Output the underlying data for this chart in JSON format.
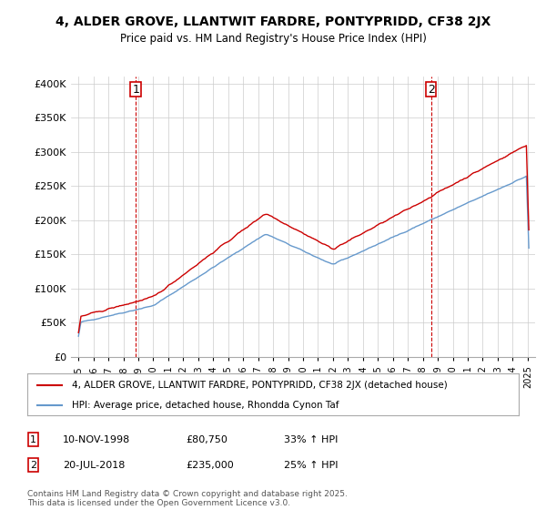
{
  "title": "4, ALDER GROVE, LLANTWIT FARDRE, PONTYPRIDD, CF38 2JX",
  "subtitle": "Price paid vs. HM Land Registry's House Price Index (HPI)",
  "legend_line1": "4, ALDER GROVE, LLANTWIT FARDRE, PONTYPRIDD, CF38 2JX (detached house)",
  "legend_line2": "HPI: Average price, detached house, Rhondda Cynon Taf",
  "footnote": "Contains HM Land Registry data © Crown copyright and database right 2025.\nThis data is licensed under the Open Government Licence v3.0.",
  "annotation1_date": "10-NOV-1998",
  "annotation1_price": "£80,750",
  "annotation1_hpi": "33% ↑ HPI",
  "annotation2_date": "20-JUL-2018",
  "annotation2_price": "£235,000",
  "annotation2_hpi": "25% ↑ HPI",
  "line1_color": "#cc0000",
  "line2_color": "#6699cc",
  "background_color": "#ffffff",
  "grid_color": "#cccccc",
  "ylim": [
    0,
    410000
  ],
  "yticks": [
    0,
    50000,
    100000,
    150000,
    200000,
    250000,
    300000,
    350000,
    400000
  ],
  "sale1_x": 1998.83,
  "sale2_x": 2018.55
}
